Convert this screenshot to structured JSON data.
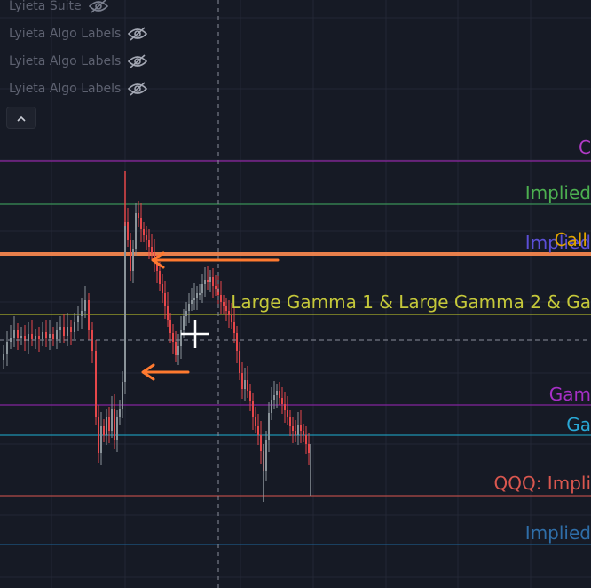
{
  "legend": {
    "rows": [
      {
        "label": "Lyieta Suite",
        "icon": "eye-off-icon"
      },
      {
        "label": "Lyieta Algo Labels",
        "icon": "eye-off-icon"
      },
      {
        "label": "Lyieta Algo Labels",
        "icon": "eye-off-icon"
      },
      {
        "label": "Lyieta Algo Labels",
        "icon": "eye-off-icon"
      }
    ],
    "collapse_icon": "chevron-up-icon"
  },
  "levels": [
    {
      "text": "C",
      "color": "#9c27b0",
      "label_color": "#b13bc7"
    },
    {
      "text": "Implied ",
      "color": "#3f9d5c",
      "label_color": "#4caf50"
    },
    {
      "text": "Implied",
      "color": "#ff8a50",
      "label_color": "#5b4fd6"
    },
    {
      "text": "Call",
      "color": "#ff8a50",
      "label_color": "#e0a300"
    },
    {
      "text": "Large Gamma 1 & Large Gamma 2 & Ga",
      "color": "#b8bf2a",
      "label_color": "#c5c83a"
    },
    {
      "text": "Gam",
      "color": "#8e24aa",
      "label_color": "#a72fc7"
    },
    {
      "text": "Ga",
      "color": "#1e9fc0",
      "label_color": "#29a8d6"
    },
    {
      "text": "QQQ: Impli",
      "color": "#c4514a",
      "label_color": "#d9574f"
    },
    {
      "text": "Implied ",
      "color": "#1f5f8f",
      "label_color": "#2f6ea8"
    }
  ],
  "colors": {
    "background": "#161a25",
    "grid": "#232735",
    "candle_up": "#8a9399",
    "candle_down": "#e5474a",
    "arrow": "#ff7a30",
    "crosshair": "#8b8f9c"
  }
}
